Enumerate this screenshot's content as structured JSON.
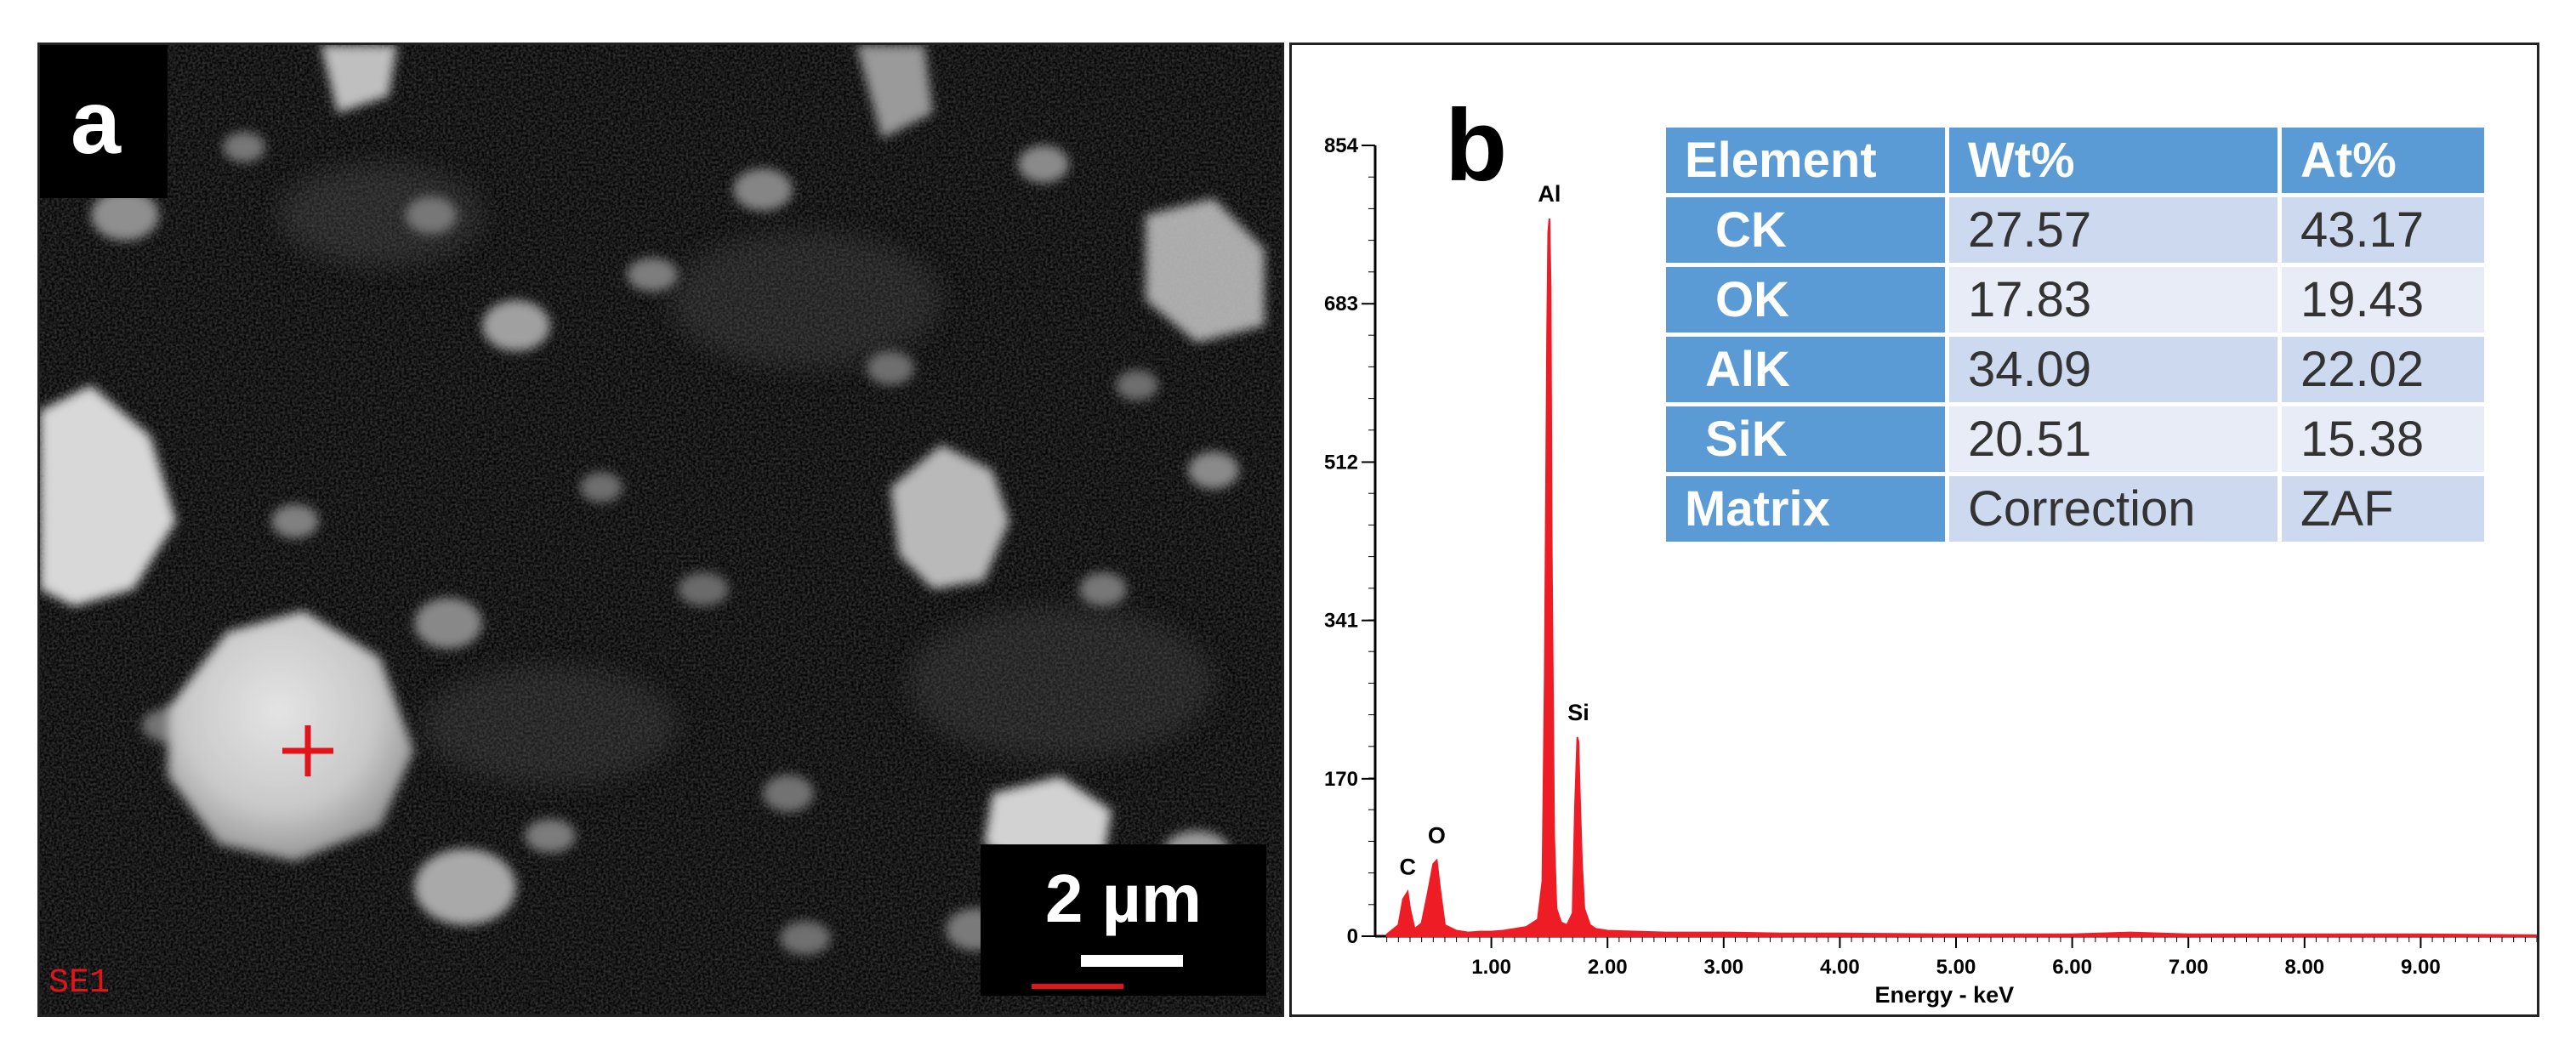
{
  "panel_a": {
    "letter": "a",
    "detector_label": "SE1",
    "scale_bar_label": "2 µm",
    "marker_color": "#e1141b"
  },
  "panel_b": {
    "letter": "b",
    "table": {
      "headers": [
        "Element",
        "Wt%",
        "At%"
      ],
      "rows": [
        [
          "CK",
          "27.57",
          "43.17"
        ],
        [
          "OK",
          "17.83",
          "19.43"
        ],
        [
          "AlK",
          "34.09",
          "22.02"
        ],
        [
          "SiK",
          "20.51",
          "15.38"
        ],
        [
          "Matrix",
          "Correction",
          "ZAF"
        ]
      ],
      "header_color": "#5b9bd5",
      "row_color_a": "#cdd9ee",
      "row_color_b": "#e7ecf6"
    }
  },
  "chart_data": {
    "type": "area",
    "title": "",
    "xlabel": "Energy - keV",
    "ylabel": "",
    "xlim": [
      0,
      10
    ],
    "ylim": [
      0,
      854
    ],
    "xticks": [
      "1.00",
      "2.00",
      "3.00",
      "4.00",
      "5.00",
      "6.00",
      "7.00",
      "8.00",
      "9.00"
    ],
    "yticks": [
      "0",
      "170",
      "341",
      "512",
      "683",
      "854"
    ],
    "color": "#ee1c25",
    "series": [
      {
        "x": [
          0.1,
          0.2,
          0.24,
          0.28,
          0.3,
          0.34,
          0.4,
          0.45,
          0.5,
          0.53,
          0.56,
          0.6,
          0.7,
          0.8,
          0.9,
          1.0,
          1.1,
          1.2,
          1.3,
          1.4,
          1.44,
          1.46,
          1.48,
          1.49,
          1.5,
          1.51,
          1.52,
          1.54,
          1.56,
          1.6,
          1.65,
          1.7,
          1.72,
          1.74,
          1.75,
          1.76,
          1.78,
          1.8,
          1.85,
          1.9,
          2.0,
          2.5,
          3.0,
          3.5,
          4.0,
          5.0,
          6.0,
          6.5,
          7.0,
          8.0,
          9.0,
          10.0
        ],
        "y": [
          2,
          12,
          40,
          48,
          30,
          8,
          14,
          45,
          78,
          82,
          50,
          12,
          6,
          4,
          5,
          5,
          6,
          8,
          10,
          18,
          60,
          280,
          650,
          760,
          775,
          700,
          420,
          110,
          30,
          15,
          12,
          25,
          140,
          215,
          210,
          160,
          80,
          30,
          12,
          8,
          6,
          4,
          4,
          3,
          3,
          2,
          2,
          4,
          2,
          2,
          2,
          1
        ]
      }
    ],
    "annotations": [
      {
        "text": "C",
        "x": 0.28,
        "y": 48
      },
      {
        "text": "O",
        "x": 0.53,
        "y": 82
      },
      {
        "text": "Al",
        "x": 1.5,
        "y": 775
      },
      {
        "text": "Si",
        "x": 1.75,
        "y": 215
      }
    ]
  }
}
